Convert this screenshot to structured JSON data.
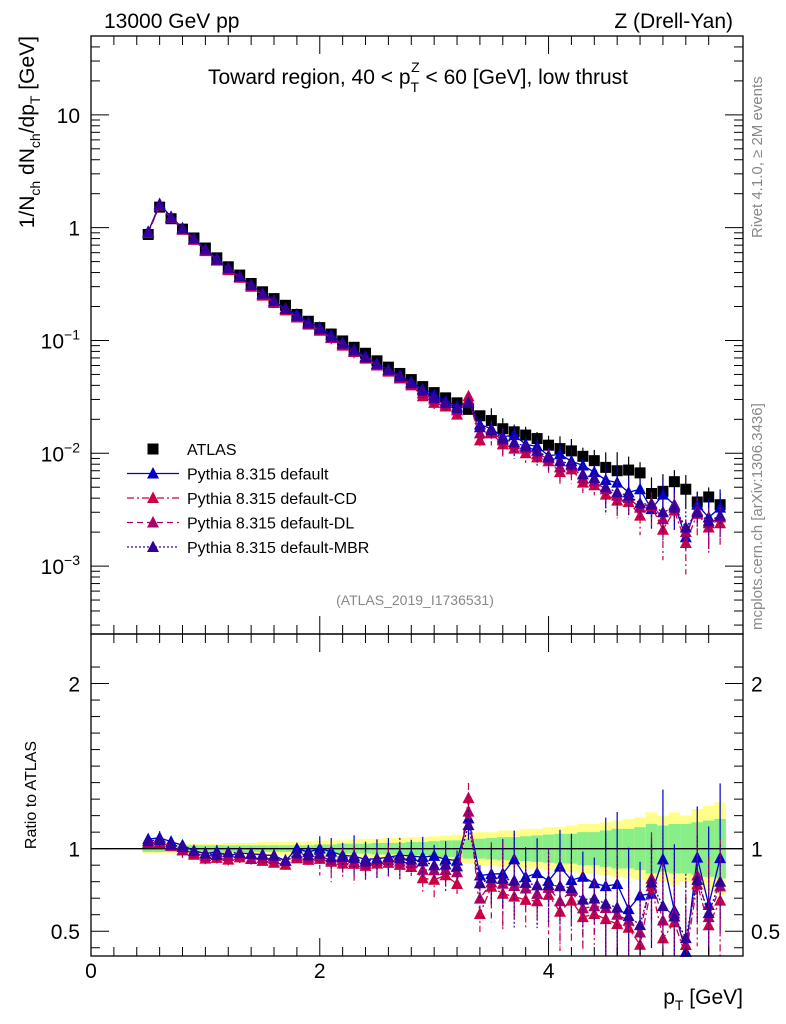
{
  "header": {
    "left": "13000 GeV pp",
    "right": "Z (Drell-Yan)"
  },
  "side_labels": {
    "rivet": "Rivet 4.1.0, ≥ 2M events",
    "mcplots": "mcplots.cern.ch [arXiv:1306.3436]"
  },
  "chart_data": [
    {
      "type": "scatter",
      "panel": "main",
      "title_parts": {
        "pre": "Toward region, 40 < p",
        "sub": "T",
        "sup": "Z",
        "post": " < 60 [GeV], low thrust"
      },
      "ylabel": "1/N_ch dN_ch/dp_T [GeV]",
      "ylabel_parts": {
        "a": "1/N",
        "b": "ch",
        "c": " dN",
        "d": "ch",
        "e": "/dp",
        "f": "T",
        "g": " [GeV]"
      },
      "yscale": "log",
      "xlim": [
        0,
        5.7
      ],
      "ylim": [
        0.00025,
        50
      ],
      "y_ticks": [
        {
          "value": 10,
          "label": "10",
          "exp": ""
        },
        {
          "value": 1,
          "label": "1",
          "exp": ""
        },
        {
          "value": 0.1,
          "label": "10",
          "exp": "−1"
        },
        {
          "value": 0.01,
          "label": "10",
          "exp": "−2"
        },
        {
          "value": 0.001,
          "label": "10",
          "exp": "−3"
        }
      ],
      "watermark": "(ATLAS_2019_I1736531)",
      "legend_position": "lower-left",
      "x": [
        0.5,
        0.6,
        0.7,
        0.8,
        0.9,
        1.0,
        1.1,
        1.2,
        1.3,
        1.4,
        1.5,
        1.6,
        1.7,
        1.8,
        1.9,
        2.0,
        2.1,
        2.2,
        2.3,
        2.4,
        2.5,
        2.6,
        2.7,
        2.8,
        2.9,
        3.0,
        3.1,
        3.2,
        3.3,
        3.4,
        3.5,
        3.6,
        3.7,
        3.8,
        3.9,
        4.0,
        4.1,
        4.2,
        4.3,
        4.4,
        4.5,
        4.6,
        4.7,
        4.8,
        4.9,
        5.0,
        5.1,
        5.2,
        5.3,
        5.4,
        5.5
      ],
      "series": [
        {
          "name": "ATLAS",
          "style": "square",
          "color": "#000000",
          "values": [
            0.87,
            1.52,
            1.2,
            0.97,
            0.81,
            0.66,
            0.54,
            0.45,
            0.38,
            0.32,
            0.27,
            0.235,
            0.205,
            0.17,
            0.148,
            0.13,
            0.114,
            0.099,
            0.087,
            0.077,
            0.066,
            0.058,
            0.051,
            0.045,
            0.039,
            0.0345,
            0.031,
            0.028,
            0.0245,
            0.0215,
            0.0195,
            0.0165,
            0.0155,
            0.0145,
            0.0135,
            0.0118,
            0.011,
            0.0105,
            0.0094,
            0.0086,
            0.0075,
            0.007,
            0.0071,
            0.0067,
            0.0044,
            0.0046,
            0.0056,
            0.0048,
            0.0037,
            0.0041,
            0.0035
          ]
        },
        {
          "name": "Pythia 8.315 default",
          "style": "solid",
          "color": "#0000cc",
          "values": [
            0.92,
            1.62,
            1.25,
            0.99,
            0.8,
            0.64,
            0.53,
            0.43,
            0.37,
            0.31,
            0.26,
            0.225,
            0.19,
            0.17,
            0.145,
            0.13,
            0.112,
            0.095,
            0.083,
            0.072,
            0.062,
            0.055,
            0.049,
            0.043,
            0.037,
            0.033,
            0.029,
            0.026,
            0.029,
            0.018,
            0.0165,
            0.014,
            0.0145,
            0.012,
            0.0115,
            0.0095,
            0.0098,
            0.0085,
            0.0078,
            0.0068,
            0.0058,
            0.0055,
            0.0045,
            0.0048,
            0.0032,
            0.0043,
            0.0035,
            0.0018,
            0.0035,
            0.0027,
            0.0033
          ]
        },
        {
          "name": "Pythia 8.315 default-CD",
          "style": "dashdot",
          "color": "#cc0044",
          "values": [
            0.9,
            1.58,
            1.22,
            0.96,
            0.78,
            0.62,
            0.51,
            0.42,
            0.36,
            0.3,
            0.25,
            0.215,
            0.185,
            0.16,
            0.138,
            0.122,
            0.105,
            0.09,
            0.079,
            0.069,
            0.06,
            0.053,
            0.046,
            0.04,
            0.032,
            0.028,
            0.026,
            0.022,
            0.032,
            0.013,
            0.015,
            0.012,
            0.011,
            0.01,
            0.0092,
            0.0085,
            0.0068,
            0.0072,
            0.0055,
            0.0052,
            0.0043,
            0.0038,
            0.0037,
            0.0028,
            0.0034,
            0.0021,
            0.0031,
            0.0016,
            0.0029,
            0.0022,
            0.0024
          ]
        },
        {
          "name": "Pythia 8.315 default-DL",
          "style": "dashed",
          "color": "#aa0066",
          "values": [
            0.9,
            1.57,
            1.22,
            0.96,
            0.79,
            0.63,
            0.52,
            0.43,
            0.365,
            0.3,
            0.255,
            0.22,
            0.19,
            0.162,
            0.14,
            0.124,
            0.106,
            0.092,
            0.08,
            0.07,
            0.061,
            0.054,
            0.047,
            0.041,
            0.034,
            0.03,
            0.027,
            0.024,
            0.03,
            0.015,
            0.0155,
            0.013,
            0.012,
            0.011,
            0.0098,
            0.009,
            0.0075,
            0.0078,
            0.006,
            0.0056,
            0.0048,
            0.0042,
            0.004,
            0.0033,
            0.0036,
            0.0026,
            0.0034,
            0.002,
            0.0031,
            0.0024,
            0.0027
          ]
        },
        {
          "name": "Pythia 8.315 default-MBR",
          "style": "dotted",
          "color": "#330099",
          "values": [
            0.91,
            1.6,
            1.23,
            0.98,
            0.8,
            0.64,
            0.52,
            0.44,
            0.37,
            0.31,
            0.26,
            0.225,
            0.19,
            0.165,
            0.142,
            0.126,
            0.108,
            0.094,
            0.082,
            0.071,
            0.062,
            0.055,
            0.048,
            0.042,
            0.036,
            0.031,
            0.028,
            0.025,
            0.028,
            0.017,
            0.016,
            0.0135,
            0.0125,
            0.0115,
            0.0105,
            0.0092,
            0.0085,
            0.008,
            0.0065,
            0.006,
            0.005,
            0.0045,
            0.0042,
            0.0036,
            0.0035,
            0.003,
            0.0033,
            0.0022,
            0.003,
            0.0025,
            0.0028
          ]
        }
      ]
    },
    {
      "type": "scatter",
      "panel": "ratio",
      "ylabel": "Ratio to ATLAS",
      "xlabel_parts": {
        "a": "p",
        "b": "T",
        "c": " [GeV]"
      },
      "xlim": [
        0,
        5.7
      ],
      "ylim": [
        0.35,
        2.3
      ],
      "x_ticks": [
        0,
        2,
        4
      ],
      "y_ticks": [
        0.5,
        1,
        2
      ],
      "band_stat_halfwidth": [
        0.02,
        0.02,
        0.02,
        0.02,
        0.02,
        0.02,
        0.02,
        0.02,
        0.02,
        0.02,
        0.02,
        0.02,
        0.02,
        0.02,
        0.02,
        0.025,
        0.025,
        0.03,
        0.03,
        0.03,
        0.035,
        0.035,
        0.035,
        0.04,
        0.04,
        0.045,
        0.05,
        0.05,
        0.06,
        0.06,
        0.065,
        0.07,
        0.07,
        0.075,
        0.08,
        0.085,
        0.09,
        0.09,
        0.1,
        0.1,
        0.11,
        0.12,
        0.12,
        0.13,
        0.15,
        0.14,
        0.15,
        0.15,
        0.16,
        0.17,
        0.18
      ],
      "band_total_halfwidth": [
        0.03,
        0.03,
        0.03,
        0.03,
        0.03,
        0.03,
        0.03,
        0.035,
        0.035,
        0.035,
        0.04,
        0.04,
        0.04,
        0.04,
        0.045,
        0.05,
        0.05,
        0.05,
        0.055,
        0.06,
        0.06,
        0.065,
        0.065,
        0.07,
        0.07,
        0.075,
        0.08,
        0.085,
        0.09,
        0.1,
        0.1,
        0.11,
        0.11,
        0.12,
        0.12,
        0.13,
        0.13,
        0.14,
        0.15,
        0.15,
        0.16,
        0.17,
        0.18,
        0.19,
        0.22,
        0.2,
        0.22,
        0.2,
        0.24,
        0.26,
        0.28
      ]
    }
  ]
}
